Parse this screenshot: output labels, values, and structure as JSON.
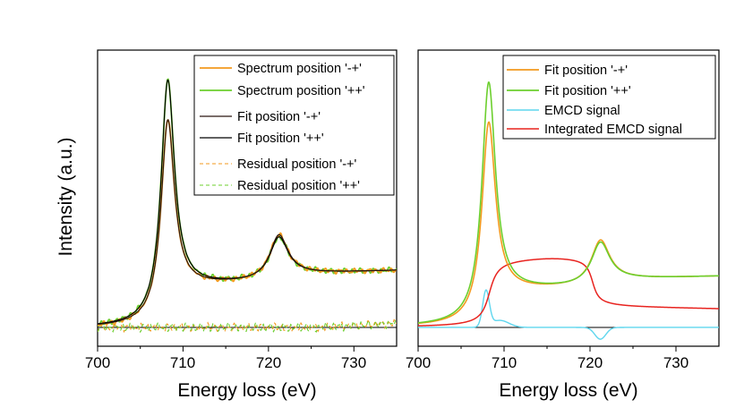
{
  "chart_data": [
    {
      "type": "line",
      "panel": "left",
      "xlabel": "Energy loss (eV)",
      "ylabel": "Intensity (a.u.)",
      "xlim": [
        700,
        735
      ],
      "ylim": [
        -0.08,
        1.18
      ],
      "xticks": [
        "700",
        "710",
        "720",
        "730"
      ],
      "legend_position": "top-right",
      "legend": [
        {
          "key": "spec_mp",
          "label": "Spectrum position '-+'",
          "color": "#f39a1e",
          "style": "solid"
        },
        {
          "key": "spec_pp",
          "label": "Spectrum position '++'",
          "color": "#6ccf2e",
          "style": "solid"
        },
        {
          "key": "fit_mp",
          "label": "Fit position '-+'",
          "color": "#2a1610",
          "style": "solid"
        },
        {
          "key": "fit_pp",
          "label": "Fit position '++'",
          "color": "#000000",
          "style": "solid"
        },
        {
          "key": "res_mp",
          "label": "Residual position '-+'",
          "color": "#f39a1e",
          "style": "dashed"
        },
        {
          "key": "res_pp",
          "label": "Residual position '++'",
          "color": "#6ccf2e",
          "style": "dashed"
        }
      ],
      "peaks": {
        "L3_energy": 708.2,
        "L2_energy": 721.2,
        "L3_height_mp": 0.8,
        "L3_height_pp": 0.97,
        "L2_height_mp": 0.41,
        "L2_height_pp": 0.36,
        "tail_at_735": 0.22,
        "baseline": 0.0
      }
    },
    {
      "type": "line",
      "panel": "right",
      "xlabel": "Energy loss (eV)",
      "ylabel": "",
      "xlim": [
        700,
        735
      ],
      "ylim": [
        -0.08,
        1.18
      ],
      "xticks": [
        "700",
        "710",
        "720",
        "730"
      ],
      "legend_position": "top-right",
      "legend": [
        {
          "key": "fit_mp",
          "label": "Fit position '-+'",
          "color": "#f39a1e",
          "style": "solid"
        },
        {
          "key": "fit_pp",
          "label": "Fit position '++'",
          "color": "#6ccf2e",
          "style": "solid"
        },
        {
          "key": "emcd",
          "label": "EMCD signal",
          "color": "#5fd6ee",
          "style": "solid"
        },
        {
          "key": "int_emcd",
          "label": "Integrated EMCD signal",
          "color": "#e8231f",
          "style": "solid"
        }
      ],
      "peaks": {
        "L3_energy": 708.2,
        "L2_energy": 721.2,
        "L3_height_mp": 0.8,
        "L3_height_pp": 0.97,
        "L2_height_mp": 0.41,
        "L2_height_pp": 0.36,
        "emcd_max": 0.15,
        "emcd_min": -0.05,
        "integrated_plateau": 0.3,
        "integrated_end": 0.09,
        "tail_at_735": 0.19
      }
    }
  ]
}
